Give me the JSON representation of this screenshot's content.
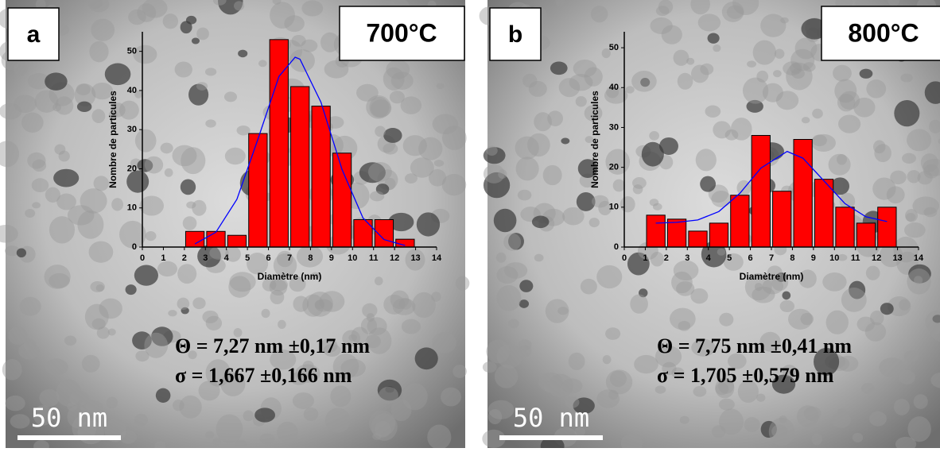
{
  "chart_data": [
    {
      "type": "histogram",
      "panel": "a",
      "label": "700°C",
      "xlabel": "Diamètre (nm)",
      "ylabel": "Nombre de particules",
      "bins": [
        2,
        3,
        4,
        5,
        6,
        7,
        8,
        9,
        10,
        11,
        12,
        13
      ],
      "values": [
        4,
        4,
        3,
        29,
        53,
        41,
        36,
        24,
        7,
        7,
        2
      ],
      "color": "#ff0000",
      "fit": {
        "color": "#0000ff",
        "x": [
          2.5,
          3.5,
          4.5,
          5.5,
          6.5,
          7.27,
          7.5,
          8.5,
          9.5,
          10.5,
          11.5,
          12.5
        ],
        "y": [
          0.8,
          3.8,
          12.2,
          27.6,
          43.6,
          48.5,
          48.0,
          37.0,
          19.8,
          7.4,
          1.9,
          0.4
        ]
      },
      "xlim": [
        0,
        14
      ],
      "xticks": [
        0,
        1,
        2,
        3,
        4,
        5,
        6,
        7,
        8,
        9,
        10,
        11,
        12,
        13,
        14
      ],
      "ylim": [
        0,
        55
      ],
      "yticks": [
        0,
        10,
        20,
        30,
        40,
        50
      ],
      "annotations": [
        "Θ = 7,27 nm ±0,17 nm",
        "σ = 1,667 ±0,166 nm"
      ],
      "scale_bar": "50 nm"
    },
    {
      "type": "histogram",
      "panel": "b",
      "label": "800°C",
      "xlabel": "Diamètre (nm)",
      "ylabel": "Nombre de particules",
      "bins": [
        1,
        2,
        3,
        4,
        5,
        6,
        7,
        8,
        9,
        10,
        11,
        12,
        13
      ],
      "values": [
        8,
        7,
        4,
        6,
        13,
        28,
        14,
        27,
        17,
        10,
        6,
        10
      ],
      "color": "#ff0000",
      "fit": {
        "color": "#0000ff",
        "x": [
          1.5,
          2.5,
          3.5,
          4.5,
          5.5,
          6.5,
          7.75,
          8.5,
          9.5,
          10.5,
          11.5,
          12.5
        ],
        "y": [
          6.0,
          6.2,
          6.8,
          8.9,
          13.5,
          19.8,
          24.0,
          22.3,
          16.6,
          10.9,
          7.6,
          6.4
        ]
      },
      "xlim": [
        0,
        14
      ],
      "xticks": [
        0,
        1,
        2,
        3,
        4,
        5,
        6,
        7,
        8,
        9,
        10,
        11,
        12,
        13,
        14
      ],
      "ylim": [
        0,
        54
      ],
      "yticks": [
        0,
        10,
        20,
        30,
        40,
        50
      ],
      "annotations": [
        "Θ = 7,75 nm ±0,41 nm",
        "σ = 1,705 ±0,579 nm"
      ],
      "scale_bar": "50 nm"
    }
  ]
}
